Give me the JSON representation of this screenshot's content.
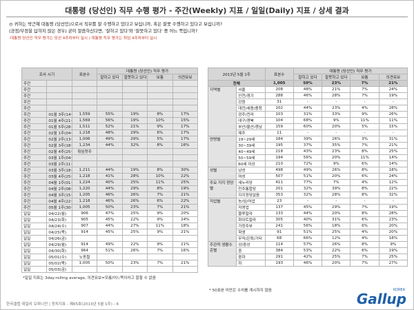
{
  "header": {
    "title": "대통령 (당선인) 직무 수행 평가 - 주간(Weekly) 지표 / 일일(Daily) 지표 / 상세 결과"
  },
  "question": {
    "lines": [
      "◎ 귀하는 박근혜 대통령 (당선인)으로서 직무를 잘 수행하고 있다고 보십니까, 혹은 잘못 수행하고 있다고 보십니까?",
      "(긍정/부정을 답하지 않은 경우) 굳이 말씀하신다면, '잘하고 있다'와 '잘못하고 있다' 중 어느 쪽입니까?"
    ],
    "note": "-대통령 당선인 직무 평가는 당선 4주차부터 실시 / 대통령 직무 평가는 취임 4주차부터 실시"
  },
  "left_table": {
    "period_header": "조사 시기",
    "n_header": "표본수",
    "group_header": "대통령 (당선인) 직무 평가",
    "col_headers": [
      "잘하고 있다",
      "잘못하고 있다",
      "보통",
      "의견유보"
    ],
    "rows": [
      [
        "주간",
        null,
        null,
        null,
        null,
        null,
        null
      ],
      [
        "주간",
        null,
        null,
        null,
        null,
        null,
        null
      ],
      [
        "주간",
        null,
        null,
        null,
        null,
        null,
        null
      ],
      [
        "주간",
        null,
        null,
        null,
        null,
        null,
        null
      ],
      [
        "주간",
        null,
        null,
        null,
        null,
        null,
        null
      ],
      [
        "주간",
        "01월 3주(14~18)",
        "1,559",
        "55%",
        "19%",
        "8%",
        "17%"
      ],
      [
        "주간",
        "01월 4주(21~25)",
        "1,569",
        "56%",
        "19%",
        "10%",
        "15%"
      ],
      [
        "주간",
        "01월 5주(28~01)",
        "1,511",
        "52%",
        "21%",
        "9%",
        "17%"
      ],
      [
        "주간",
        "02월 1주(04~08)",
        "1,218",
        "48%",
        "29%",
        "6%",
        "17%"
      ],
      [
        "주간",
        "02월 2주(13~15)",
        "1,006",
        "49%",
        "29%",
        "5%",
        "17%"
      ],
      [
        "주간",
        "02월 3주(18~21)",
        "1,234",
        "44%",
        "32%",
        "8%",
        "16%"
      ],
      [
        "주간",
        "02월 4주(25~01)",
        "취임첫주",
        null,
        null,
        null,
        null
      ],
      [
        "주간",
        "03월 1주(04~08)",
        null,
        null,
        null,
        null,
        null
      ],
      [
        "주간",
        "03월 2주(11~15)",
        null,
        null,
        null,
        null,
        null
      ],
      [
        "주간",
        "03월 3주(18~21)",
        "1,211",
        "44%",
        "19%",
        "8%",
        "30%"
      ],
      [
        "주간",
        "03월 4주(25~29)",
        "1,218",
        "41%",
        "28%",
        "10%",
        "22%"
      ],
      [
        "주간",
        "04월 1주(01~05)",
        "1,224",
        "40%",
        "25%",
        "11%",
        "25%"
      ],
      [
        "주간",
        "04월 2주(08~11)",
        "1,220",
        "44%",
        "29%",
        "8%",
        "19%"
      ],
      [
        "주간",
        "04월 3주(15~18)",
        "1,205",
        "46%",
        "26%",
        "7%",
        "21%"
      ],
      [
        "주간",
        "04월 4주(22~26)",
        "1,218",
        "46%",
        "26%",
        "6%",
        "22%"
      ],
      [
        "주간",
        "05월 1주(30~03)",
        "1,005",
        "50%",
        "23%",
        "7%",
        "21%"
      ],
      [
        "일일",
        "04/22(월)",
        "906",
        "47%",
        "25%",
        "9%",
        "20%"
      ],
      [
        "일일",
        "04/23(화)",
        "905",
        "45%",
        "22%",
        "9%",
        "24%"
      ],
      [
        "일일",
        "04/24(수)",
        "907",
        "44%",
        "27%",
        "11%",
        "18%"
      ],
      [
        "일일",
        "04/25(목)",
        "914",
        "45%",
        "25%",
        "9%",
        "21%"
      ],
      [
        "일일",
        "04/26(금)",
        null,
        null,
        null,
        null,
        null
      ],
      [
        "일일",
        "04/29(월)",
        "914",
        "49%",
        "22%",
        "9%",
        "21%"
      ],
      [
        "일일",
        "04/30(화)",
        "964",
        "51%",
        "26%",
        "7%",
        "16%"
      ],
      [
        "일일",
        "05/01(수)",
        "노동절",
        null,
        null,
        null,
        null
      ],
      [
        "일일",
        "05/02(목)",
        "1,005",
        "50%",
        "23%",
        "7%",
        "21%"
      ],
      [
        "일일",
        "05/03(금)",
        null,
        null,
        null,
        null,
        null
      ]
    ],
    "note": "*일일 지표는 3day-rolling average, 의견유보=모름/어느쪽이라고 말할 수 없음"
  },
  "right_table": {
    "period": "2013년 5월 1주",
    "n_header": "표본수",
    "group_header": "대통령 (당선인) 직무 평가",
    "col_headers": [
      "잘하고 있다",
      "잘못하고 있다",
      "보통",
      "의견유보"
    ],
    "total": [
      "전체",
      "1,005",
      "50%",
      "23%",
      "7%",
      "21%"
    ],
    "groups": [
      {
        "label": "지역별",
        "rows": [
          [
            "서울",
            "208",
            "48%",
            "21%",
            "7%",
            "24%"
          ],
          [
            "인천/경기",
            "288",
            "46%",
            "28%",
            "7%",
            "19%"
          ],
          [
            "강원",
            "31",
            "-",
            "-",
            "-",
            "-"
          ],
          [
            "대전/세종/충청",
            "102",
            "44%",
            "23%",
            "4%",
            "28%"
          ],
          [
            "광주/전라",
            "103",
            "31%",
            "33%",
            "9%",
            "26%"
          ],
          [
            "대구/경북",
            "104",
            "68%",
            "9%",
            "11%",
            "11%"
          ],
          [
            "부산/울산/경남",
            "159",
            "60%",
            "20%",
            "5%",
            "15%"
          ],
          [
            "제주",
            "11",
            "-",
            "-",
            "-",
            "-"
          ]
        ]
      },
      {
        "label": "연령별",
        "rows": [
          [
            "19~29세",
            "184",
            "39%",
            "26%",
            "3%",
            "31%"
          ],
          [
            "30~39세",
            "195",
            "37%",
            "35%",
            "7%",
            "21%"
          ],
          [
            "40~49세",
            "218",
            "43%",
            "23%",
            "8%",
            "25%"
          ],
          [
            "50~59세",
            "194",
            "56%",
            "20%",
            "11%",
            "14%"
          ],
          [
            "60세 이상",
            "210",
            "72%",
            "9%",
            "6%",
            "14%"
          ]
        ]
      },
      {
        "label": "성별",
        "rows": [
          [
            "남성",
            "498",
            "49%",
            "26%",
            "8%",
            "18%"
          ],
          [
            "여성",
            "507",
            "51%",
            "20%",
            "6%",
            "24%"
          ]
        ]
      },
      {
        "label": "주요 지지 정당별",
        "rows": [
          [
            "새누리당",
            "411",
            "77%",
            "7%",
            "4%",
            "12%"
          ],
          [
            "민주통합당",
            "201",
            "32%",
            "39%",
            "8%",
            "22%"
          ],
          [
            "지지정당없음",
            "353",
            "32%",
            "28%",
            "8%",
            "32%"
          ]
        ]
      },
      {
        "label": "직업별",
        "rows": [
          [
            "농/임/어업",
            "23",
            "-",
            "-",
            "-",
            "-"
          ],
          [
            "자영업",
            "137",
            "45%",
            "29%",
            "7%",
            "19%"
          ],
          [
            "블루칼라",
            "133",
            "44%",
            "20%",
            "8%",
            "28%"
          ],
          [
            "화이트칼라",
            "305",
            "40%",
            "31%",
            "6%",
            "23%"
          ],
          [
            "가정주부",
            "241",
            "56%",
            "18%",
            "6%",
            "20%"
          ],
          [
            "학생",
            "91",
            "51%",
            "25%",
            "4%",
            "20%"
          ],
          [
            "무직/은퇴/기타",
            "68",
            "66%",
            "12%",
            "4%",
            "18%"
          ]
        ]
      },
      {
        "label": "주관적 생활수준별",
        "rows": [
          [
            "상/중상",
            "114",
            "57%",
            "26%",
            "8%",
            "9%"
          ],
          [
            "중",
            "384",
            "53%",
            "22%",
            "6%",
            "19%"
          ],
          [
            "중하",
            "291",
            "42%",
            "25%",
            "7%",
            "25%"
          ],
          [
            "하",
            "193",
            "46%",
            "20%",
            "7%",
            "27%"
          ]
        ]
      }
    ],
    "note": "* 50표본 미만은 수치를 게시하지 않음"
  },
  "footer": {
    "text": "한국갤럽 데일리 오피니언 | 정치지표 - 제65호(2013년 5월 1주) - 6",
    "logo": "Gallup",
    "logo_sub": "KOREA"
  }
}
